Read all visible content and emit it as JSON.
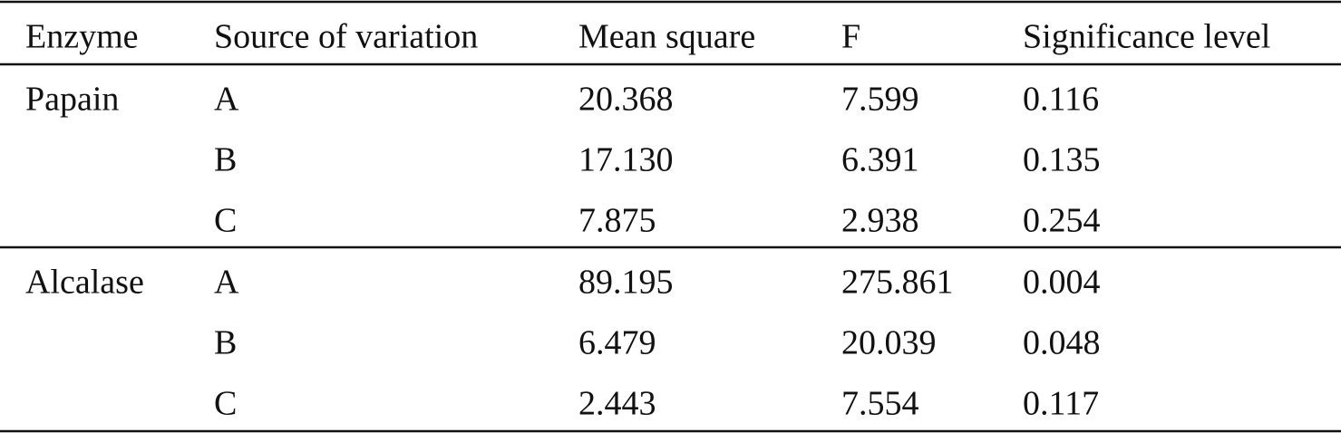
{
  "table": {
    "header": [
      "Enzyme",
      "Source of variation",
      "Mean square",
      "F",
      "Significance level"
    ],
    "groups": [
      {
        "enzyme": "Papain",
        "rows": [
          [
            "A",
            "20.368",
            "7.599",
            "0.116"
          ],
          [
            "B",
            "17.130",
            "6.391",
            "0.135"
          ],
          [
            "C",
            "7.875",
            "2.938",
            "0.254"
          ]
        ]
      },
      {
        "enzyme": "Alcalase",
        "rows": [
          [
            "A",
            "89.195",
            "275.861",
            "0.004"
          ],
          [
            "B",
            "6.479",
            "20.039",
            "0.048"
          ],
          [
            "C",
            "2.443",
            "7.554",
            "0.117"
          ]
        ]
      }
    ]
  }
}
